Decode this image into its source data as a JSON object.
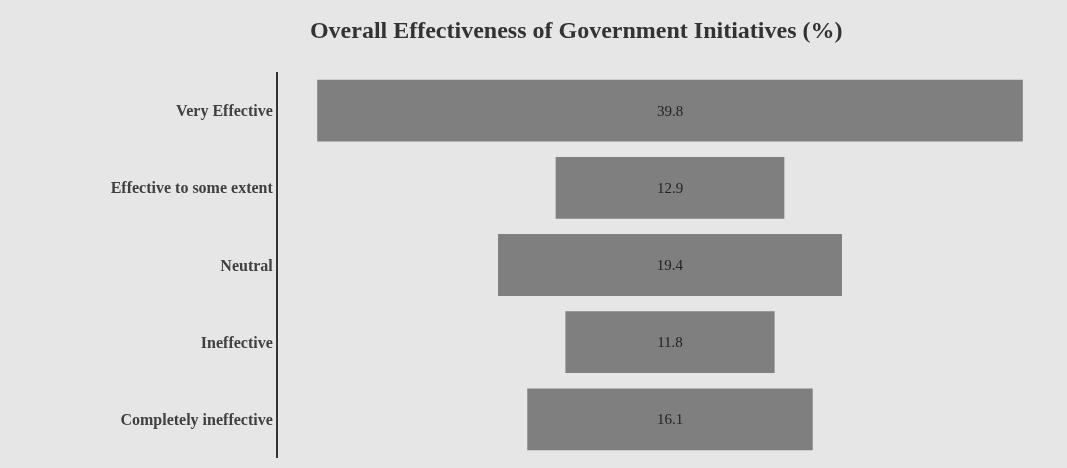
{
  "chart_data": {
    "type": "other",
    "title": "Overall Effectiveness of Government Initiatives (%)",
    "categories": [
      "Very Effective",
      "Effective to some extent",
      "Neutral",
      "Ineffective",
      "Completely ineffective"
    ],
    "values": [
      39.8,
      12.9,
      19.4,
      11.8,
      16.1
    ],
    "color": "#7f7f7f",
    "data_labels": true
  }
}
